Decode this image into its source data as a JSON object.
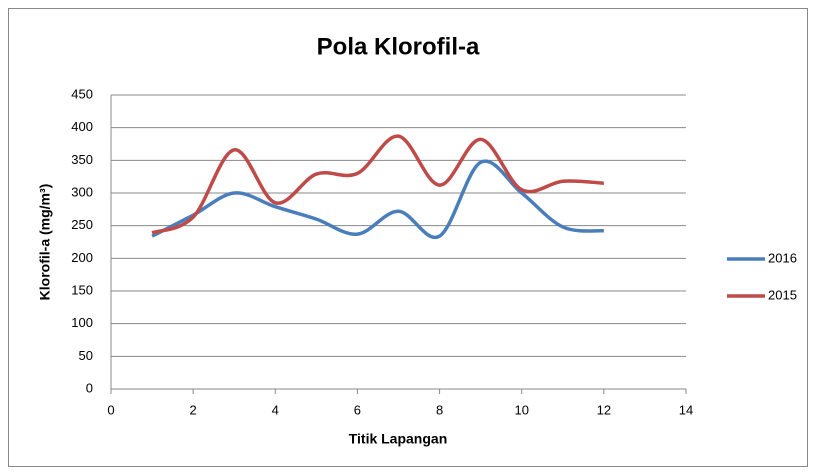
{
  "chart_data": {
    "type": "line",
    "title": "Pola Klorofil-a",
    "x_label": "Titik Lapangan",
    "y_label": "Klorofil-a  (mg/m³)",
    "x": [
      1,
      2,
      3,
      4,
      5,
      6,
      7,
      8,
      9,
      10,
      11,
      12
    ],
    "series": [
      {
        "name": "2016",
        "color": "#4a7ebb",
        "values": [
          234,
          266,
          300,
          279,
          260,
          237,
          272,
          234,
          347,
          300,
          248,
          242
        ]
      },
      {
        "name": "2015",
        "color": "#be4b48",
        "values": [
          239,
          263,
          366,
          285,
          329,
          330,
          387,
          312,
          382,
          305,
          318,
          315
        ]
      }
    ],
    "xlim": [
      0,
      14
    ],
    "xticks": [
      0,
      2,
      4,
      6,
      8,
      10,
      12,
      14
    ],
    "ylim": [
      0,
      450
    ],
    "yticks": [
      0,
      50,
      100,
      150,
      200,
      250,
      300,
      350,
      400,
      450
    ],
    "grid": true,
    "legend": "right",
    "smooth": true
  }
}
